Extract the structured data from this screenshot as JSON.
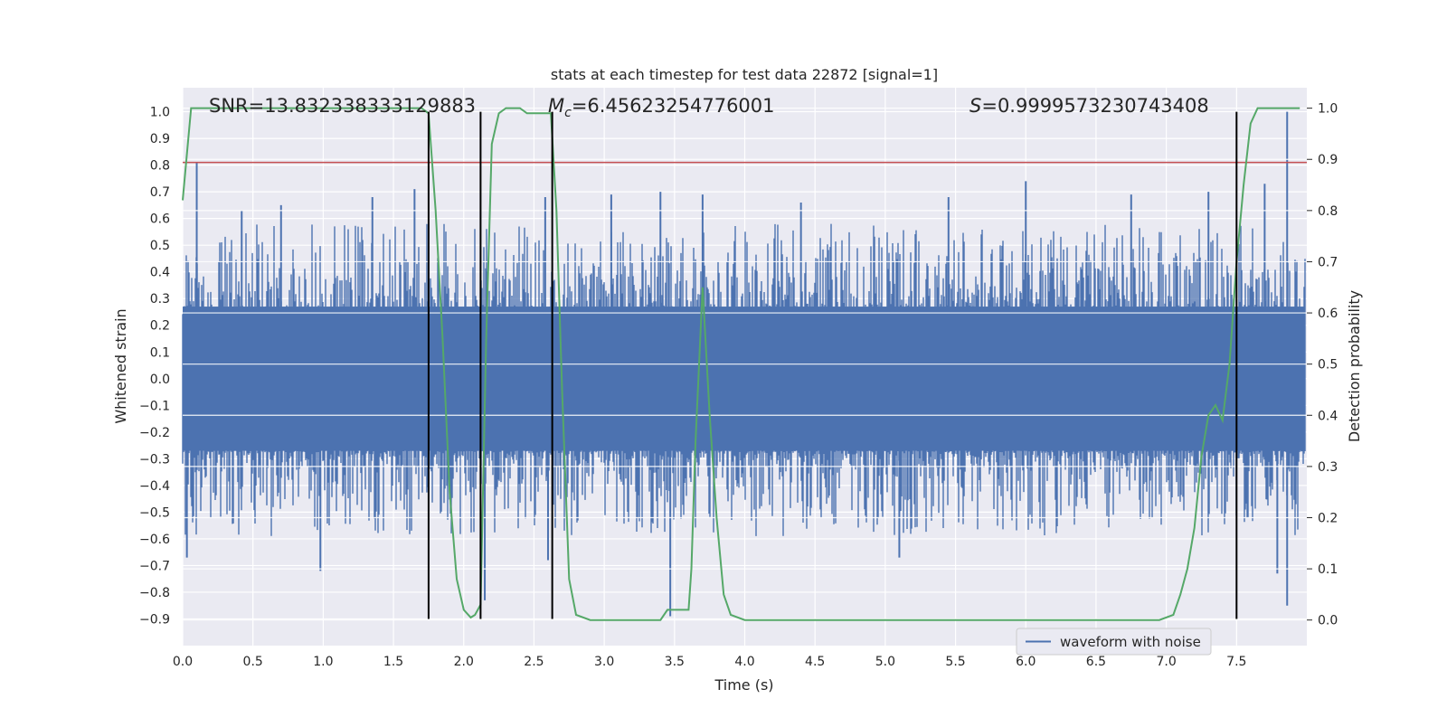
{
  "chart_data": {
    "type": "line",
    "title": "stats at each timestep for test data 22872 [signal=1]",
    "xlabel": "Time (s)",
    "ylabel_left": "Whitened strain",
    "ylabel_right": "Detection probability",
    "xlim": [
      0.0,
      8.0
    ],
    "ylim_left": [
      -1.0,
      1.09
    ],
    "ylim_right": [
      -0.05,
      1.04
    ],
    "x_ticks": [
      "0.0",
      "0.5",
      "1.0",
      "1.5",
      "2.0",
      "2.5",
      "3.0",
      "3.5",
      "4.0",
      "4.5",
      "5.0",
      "5.5",
      "6.0",
      "6.5",
      "7.0",
      "7.5"
    ],
    "y_ticks_left": [
      "1.0",
      "0.9",
      "0.8",
      "0.7",
      "0.6",
      "0.5",
      "0.4",
      "0.3",
      "0.2",
      "0.1",
      "0.0",
      "−0.1",
      "−0.2",
      "−0.3",
      "−0.4",
      "−0.5",
      "−0.6",
      "−0.7",
      "−0.8",
      "−0.9"
    ],
    "y_ticks_right": [
      "1.0",
      "0.9",
      "0.8",
      "0.7",
      "0.6",
      "0.5",
      "0.4",
      "0.3",
      "0.2",
      "0.1",
      "0.0"
    ],
    "annotations": {
      "snr": "SNR=13.832338333129883",
      "mc_symbol": "M",
      "mc_sub": "c",
      "mc_value": "=6.45623254776001",
      "s_symbol": "S",
      "s_value": "=0.9999573230743408"
    },
    "legend": {
      "label": "waveform with noise",
      "placement": "lower-right"
    },
    "grid": true,
    "threshold_line": {
      "axis": "left",
      "y": 0.81,
      "color": "#c44e52"
    },
    "vertical_lines": {
      "x": [
        1.75,
        2.12,
        2.63,
        7.5
      ],
      "y_range": [
        -0.9,
        1.0
      ],
      "color": "#000000"
    },
    "waveform": {
      "name": "waveform with noise",
      "color": "#4c72b0",
      "x_range": [
        0.0,
        7.99
      ],
      "core_band": [
        -0.27,
        0.27
      ],
      "peaks_top": [
        {
          "x": 0.1,
          "y": 0.81
        },
        {
          "x": 0.42,
          "y": 0.63
        },
        {
          "x": 0.7,
          "y": 0.65
        },
        {
          "x": 1.35,
          "y": 0.68
        },
        {
          "x": 1.65,
          "y": 0.71
        },
        {
          "x": 2.58,
          "y": 0.68
        },
        {
          "x": 3.05,
          "y": 0.69
        },
        {
          "x": 3.4,
          "y": 0.7
        },
        {
          "x": 3.7,
          "y": 0.69
        },
        {
          "x": 4.4,
          "y": 0.66
        },
        {
          "x": 5.45,
          "y": 0.68
        },
        {
          "x": 6.0,
          "y": 0.74
        },
        {
          "x": 6.75,
          "y": 0.69
        },
        {
          "x": 7.3,
          "y": 0.7
        },
        {
          "x": 7.7,
          "y": 0.73
        },
        {
          "x": 7.86,
          "y": 1.0
        }
      ],
      "peaks_bottom": [
        {
          "x": 0.03,
          "y": -0.67
        },
        {
          "x": 0.98,
          "y": -0.72
        },
        {
          "x": 2.15,
          "y": -0.83
        },
        {
          "x": 2.6,
          "y": -0.68
        },
        {
          "x": 3.47,
          "y": -0.89
        },
        {
          "x": 5.1,
          "y": -0.67
        },
        {
          "x": 7.79,
          "y": -0.73
        },
        {
          "x": 7.86,
          "y": -0.85
        }
      ]
    },
    "series": [
      {
        "axis": "right",
        "color": "#55a868",
        "x": [
          0.0,
          0.06,
          0.12,
          0.3,
          0.6,
          1.0,
          1.4,
          1.7,
          1.75,
          1.8,
          1.85,
          1.9,
          1.95,
          2.0,
          2.05,
          2.08,
          2.12,
          2.16,
          2.2,
          2.25,
          2.3,
          2.35,
          2.4,
          2.45,
          2.5,
          2.55,
          2.62,
          2.66,
          2.7,
          2.75,
          2.8,
          2.9,
          3.0,
          3.2,
          3.4,
          3.45,
          3.6,
          3.62,
          3.65,
          3.7,
          3.75,
          3.8,
          3.85,
          3.9,
          4.0,
          4.3,
          5.0,
          5.5,
          6.0,
          6.5,
          6.8,
          6.95,
          7.05,
          7.1,
          7.15,
          7.2,
          7.25,
          7.3,
          7.35,
          7.4,
          7.45,
          7.5,
          7.55,
          7.6,
          7.65,
          7.7,
          7.8,
          7.95
        ],
        "y": [
          0.82,
          1.0,
          1.0,
          1.0,
          1.0,
          1.0,
          1.0,
          1.0,
          0.99,
          0.8,
          0.55,
          0.25,
          0.08,
          0.02,
          0.005,
          0.01,
          0.03,
          0.55,
          0.93,
          0.99,
          1.0,
          1.0,
          1.0,
          0.99,
          0.99,
          0.99,
          0.99,
          0.8,
          0.45,
          0.08,
          0.01,
          0.0,
          0.0,
          0.0,
          0.0,
          0.02,
          0.02,
          0.1,
          0.35,
          0.65,
          0.4,
          0.2,
          0.05,
          0.01,
          0.0,
          0.0,
          0.0,
          0.0,
          0.0,
          0.0,
          0.0,
          0.0,
          0.01,
          0.05,
          0.1,
          0.18,
          0.32,
          0.4,
          0.42,
          0.39,
          0.5,
          0.7,
          0.85,
          0.97,
          1.0,
          1.0,
          1.0,
          1.0
        ]
      }
    ]
  }
}
